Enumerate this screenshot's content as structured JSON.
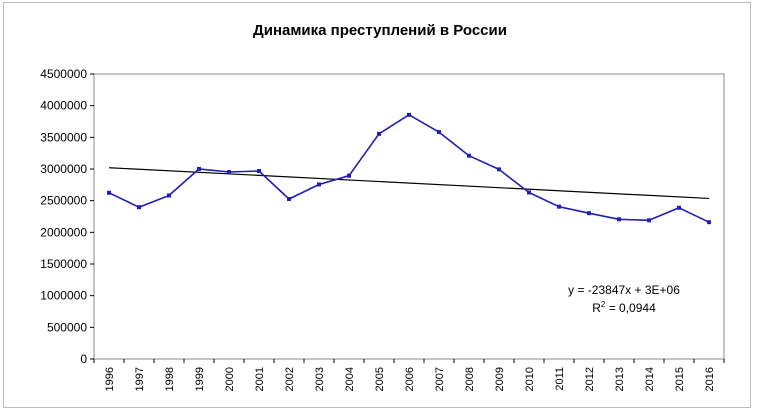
{
  "chart_data": {
    "type": "line",
    "title": "Динамика преступлений в России",
    "xlabel": "",
    "ylabel": "",
    "x": [
      "1996",
      "1997",
      "1998",
      "1999",
      "2000",
      "2001",
      "2002",
      "2003",
      "2004",
      "2005",
      "2006",
      "2007",
      "2008",
      "2009",
      "2010",
      "2011",
      "2012",
      "2013",
      "2014",
      "2015",
      "2016"
    ],
    "series": [
      {
        "color": "#1f1fb4",
        "values": [
          2625000,
          2397000,
          2582000,
          3001000,
          2952000,
          2968000,
          2526000,
          2756000,
          2894000,
          3555000,
          3855000,
          3583000,
          3210000,
          2994000,
          2629000,
          2405000,
          2302000,
          2206000,
          2190000,
          2388000,
          2160000
        ]
      }
    ],
    "trendline": {
      "color": "#000000",
      "start": 3020000,
      "end": 2535000,
      "equation": "y = -23847x + 3E+06",
      "r2_base": "R",
      "r2_sup": "2",
      "r2_value": " = 0,0944"
    },
    "ylim": [
      0,
      4500000
    ],
    "yticks": [
      "0",
      "500000",
      "1000000",
      "1500000",
      "2000000",
      "2500000",
      "3000000",
      "3500000",
      "4000000",
      "4500000"
    ],
    "yticks_values": [
      0,
      500000,
      1000000,
      1500000,
      2000000,
      2500000,
      3000000,
      3500000,
      4000000,
      4500000
    ],
    "grid": false,
    "legend": "none"
  }
}
